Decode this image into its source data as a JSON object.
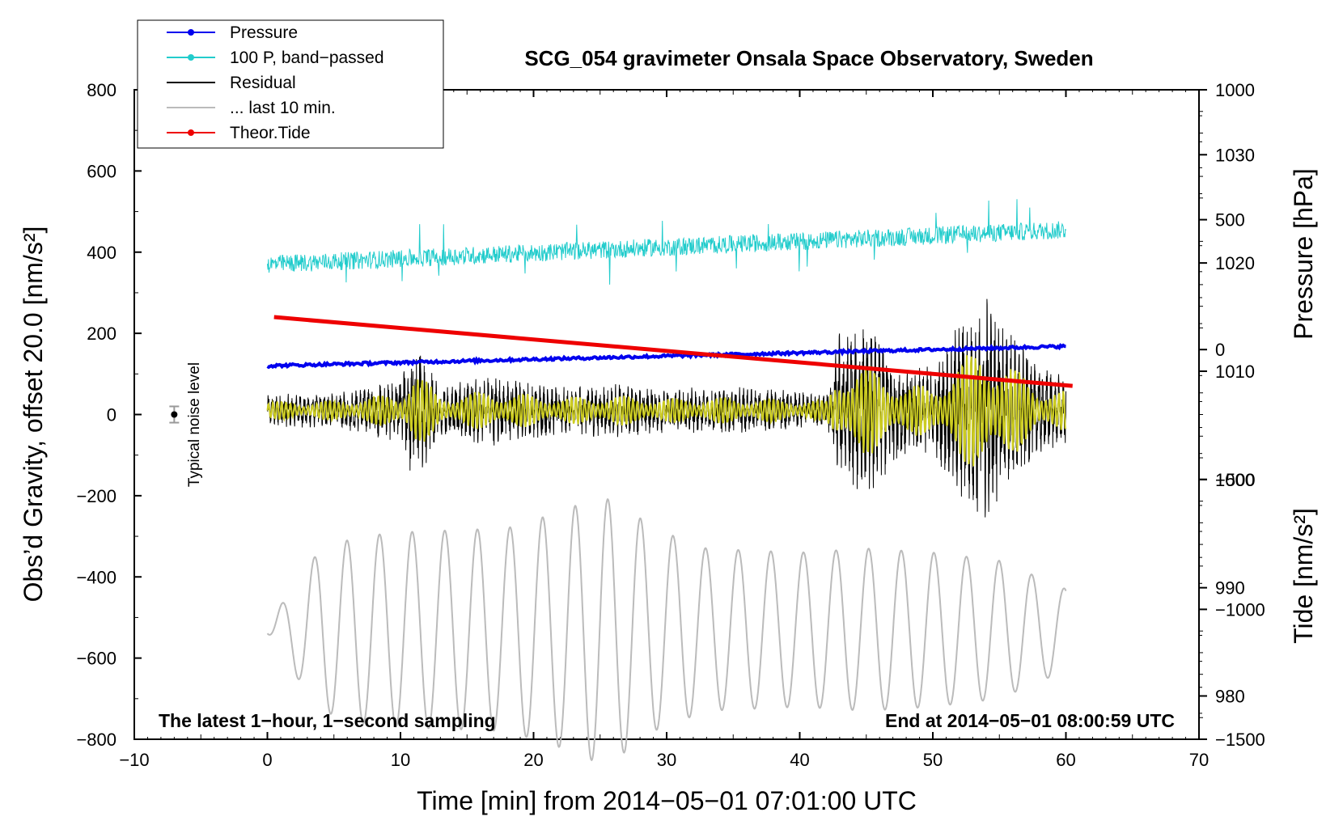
{
  "chart_data": {
    "type": "line",
    "title": "SCG_054 gravimeter Onsala Space Observatory, Sweden",
    "xlabel": "Time [min] from 2014−05−01 07:01:00 UTC",
    "ylabel_left": "Obs’d Gravity, offset 20.0 [nm/s²]",
    "ylabel_right_top": "Pressure [hPa]",
    "ylabel_right_bottom": "Tide [nm/s²]",
    "xlim": [
      -10,
      70
    ],
    "ylim_left": [
      -800,
      800
    ],
    "ylim_pressure": [
      976,
      1036
    ],
    "ylim_tide": [
      -1500,
      1000
    ],
    "x_ticks": [
      -10,
      0,
      10,
      20,
      30,
      40,
      50,
      60,
      70
    ],
    "x_tick_labels": [
      "−10",
      "0",
      "10",
      "20",
      "30",
      "40",
      "50",
      "60",
      "70"
    ],
    "y_left_ticks": [
      800,
      600,
      400,
      200,
      0,
      -200,
      -400,
      -600,
      -800
    ],
    "y_left_tick_labels": [
      "800",
      "600",
      "400",
      "200",
      "0",
      "−200",
      "−400",
      "−600",
      "−800"
    ],
    "y_pressure_ticks": [
      1030,
      1020,
      1010,
      1000,
      990,
      980
    ],
    "y_pressure_tick_labels": [
      "1030",
      "1020",
      "1010",
      "1000",
      "990",
      "980"
    ],
    "y_tide_ticks": [
      1000,
      500,
      0,
      -500,
      -1000,
      -1500
    ],
    "y_tide_tick_labels": [
      "1000",
      "500",
      "0",
      "−500",
      "−1000",
      "−1500"
    ],
    "series": [
      {
        "name": "Pressure",
        "color": "#0000ee",
        "axis": "pressure",
        "x_range": [
          0,
          60
        ],
        "start": 1010.5,
        "end": 1012.3
      },
      {
        "name": "100 P, band−passed",
        "color": "#22cccc",
        "axis": "left",
        "x_range": [
          0,
          60
        ],
        "baseline_start": 370,
        "baseline_end": 455,
        "amplitude": 22
      },
      {
        "name": "Residual",
        "color": "#000000",
        "axis": "left",
        "x_range": [
          0,
          60
        ],
        "envelope_minutes": [
          0,
          5,
          10,
          11,
          13,
          17,
          22,
          26,
          30,
          35,
          42,
          43,
          45,
          48,
          50,
          52,
          54,
          56,
          58,
          60
        ],
        "envelope_amplitude": [
          40,
          45,
          80,
          190,
          70,
          90,
          60,
          70,
          55,
          60,
          45,
          200,
          210,
          120,
          110,
          230,
          300,
          200,
          110,
          90
        ]
      },
      {
        "name": "... last 10 min.",
        "color": "#bbbbbb",
        "axis": "left",
        "x_range": [
          0,
          60
        ],
        "center": -530,
        "envelope_minutes": [
          0,
          1,
          4,
          7,
          10,
          18,
          22,
          25,
          27,
          29,
          33,
          40,
          45,
          50,
          55,
          60
        ],
        "envelope_amplitude": [
          10,
          60,
          200,
          230,
          240,
          250,
          290,
          330,
          300,
          250,
          200,
          190,
          200,
          190,
          170,
          100
        ]
      },
      {
        "name": "Theor.Tide",
        "color": "#ee0000",
        "axis": "tide",
        "x_range": [
          0.5,
          60.5
        ],
        "start": 125,
        "end": -140
      }
    ],
    "smoothed_residual": {
      "color": "#cccc22",
      "note": "filtered residual overlay, no legend entry"
    },
    "noise_marker": {
      "label": "Typical noise level",
      "x": -7,
      "y": 0,
      "err": 20
    }
  },
  "legend": {
    "items": [
      "Pressure",
      "100 P, band−passed",
      "Residual",
      "... last 10 min.",
      "Theor.Tide"
    ],
    "colors": [
      "#0000ee",
      "#22cccc",
      "#000000",
      "#bbbbbb",
      "#ee0000"
    ],
    "markers": [
      true,
      true,
      false,
      false,
      true
    ]
  },
  "annotations": {
    "bottom_left": "The latest 1−hour, 1−second sampling",
    "bottom_right": "End at 2014−05−01 08:00:59 UTC",
    "noise_label": "Typical noise level"
  }
}
